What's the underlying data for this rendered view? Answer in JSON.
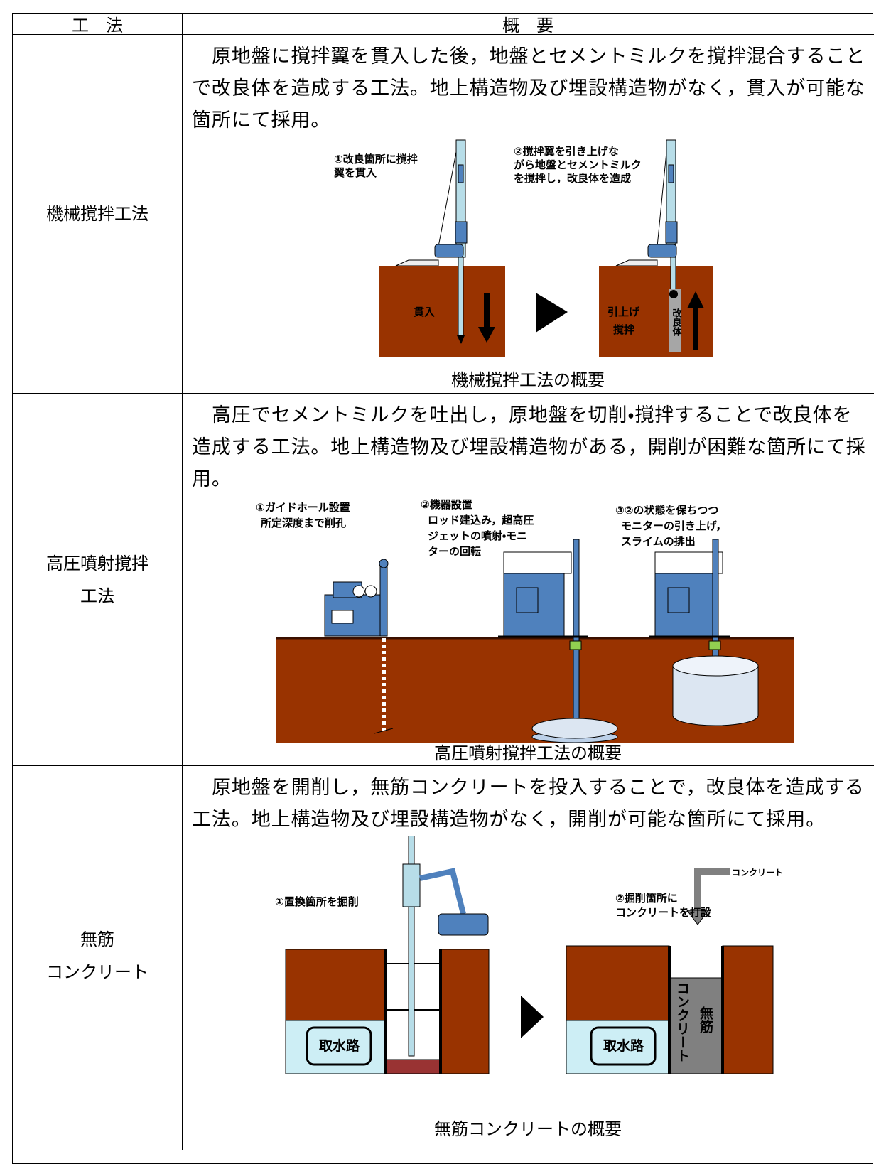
{
  "header": [
    "工　法",
    "概　要"
  ],
  "rows": [
    {
      "method": [
        "機械撹拌工法"
      ],
      "description": [
        "原地盤に撹拌翼を貫入した後，地盤とセメントミルクを撹拌混合すること",
        "で改良体を造成する工法。地上構造物及び埋設構造物がなく，貫入が可能な",
        "箇所にて採用。"
      ],
      "figure": {
        "labels": [
          [
            "①改良箇所に撹拌",
            "翼を貫入"
          ],
          [
            "②撹拌翼を引き上げな",
            "がら地盤とセメントミルク",
            "を撹拌し，改良体を造成"
          ],
          [
            "貫入"
          ],
          [
            "引上げ",
            "撹拌"
          ],
          [
            "改良体"
          ]
        ],
        "caption": "機械撹拌工法の概要"
      }
    },
    {
      "method": [
        "高圧噴射撹拌",
        "工法"
      ],
      "description": [
        "高圧でセメントミルクを吐出し，原地盤を切削・撹拌することで改良体を",
        "造成する工法。地上構造物及び埋設構造物がある，開削が困難な箇所にて採",
        "用。"
      ],
      "figure": {
        "labels": [
          [
            "①ガイドホール設置",
            "所定深度まで削孔"
          ],
          [
            "②機器設置",
            "ロッド建込み，超高圧",
            "ジェットの噴射・モニ",
            "ターの回転"
          ],
          [
            "③②の状態を保ちつつ",
            "モニターの引き上げ，",
            "スライムの排出"
          ]
        ],
        "caption": "高圧噴射撹拌工法の概要"
      }
    },
    {
      "method": [
        "無筋",
        "コンクリート"
      ],
      "description": [
        "原地盤を開削し，無筋コンクリートを投入することで，改良体を造成する",
        "工法。地上構造物及び埋設構造物がなく，開削が可能な箇所にて採用。"
      ],
      "figure": {
        "labels": [
          [
            "①置換箇所を掘削"
          ],
          [
            "②掘削箇所に",
            "コンクリートを打設"
          ],
          [
            "コンクリート"
          ],
          [
            "取水路"
          ],
          [
            "取水路"
          ],
          [
            "コンクリート"
          ],
          [
            "無筋"
          ]
        ],
        "caption": "無筋コンクリートの概要"
      }
    }
  ]
}
